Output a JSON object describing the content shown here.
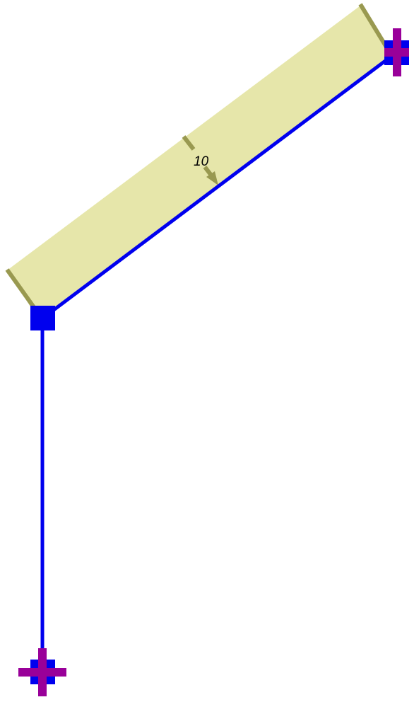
{
  "diagram": {
    "type": "structural-frame",
    "distributed_load": {
      "value_label": "10",
      "fill_color": "#e6e6aa",
      "arrow_color": "#999950"
    },
    "member_color": "#0000ee",
    "support_color": "#990099",
    "node_color": "#0000ee",
    "nodes": [
      {
        "id": "top-right",
        "support": "pin"
      },
      {
        "id": "middle-left",
        "support": "none"
      },
      {
        "id": "bottom-left",
        "support": "pin"
      }
    ],
    "members": [
      {
        "from": "middle-left",
        "to": "top-right"
      },
      {
        "from": "middle-left",
        "to": "bottom-left"
      }
    ]
  }
}
